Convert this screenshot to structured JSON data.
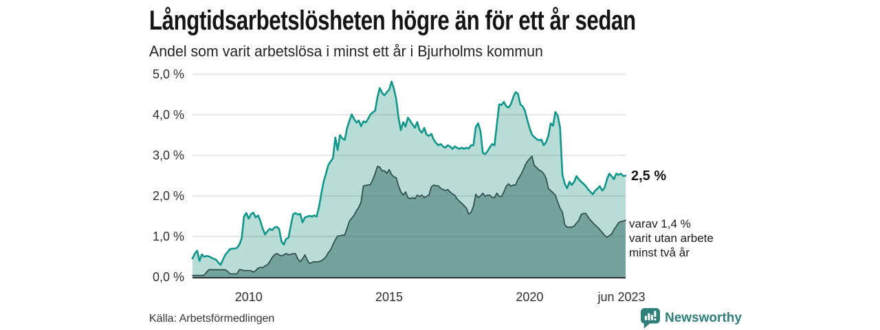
{
  "header": {
    "title": "Långtidsarbetslösheten högre än för ett år sedan",
    "subtitle": "Andel som varit arbetslösa i minst ett år i Bjurholms kommun"
  },
  "chart_data": {
    "type": "area",
    "title": "Långtidsarbetslösheten högre än för ett år sedan",
    "subtitle": "Andel som varit arbetslösa i minst ett år i Bjurholms kommun",
    "x_start": "2008-01",
    "x_end": "2023-06",
    "frequency": "monthly",
    "ylim": [
      0,
      5
    ],
    "grid": "horizontal",
    "legend": "none",
    "y_ticks": [
      {
        "v": 0,
        "label": "0,0 %"
      },
      {
        "v": 1,
        "label": "1,0 %"
      },
      {
        "v": 2,
        "label": "2,0 %"
      },
      {
        "v": 3,
        "label": "3,0 %"
      },
      {
        "v": 4,
        "label": "4,0 %"
      },
      {
        "v": 5,
        "label": "5,0 %"
      }
    ],
    "x_ticks": [
      {
        "i": 24,
        "label": "2010"
      },
      {
        "i": 84,
        "label": "2015"
      },
      {
        "i": 144,
        "label": "2020"
      },
      {
        "i": 185,
        "label": "jun 2023"
      }
    ],
    "series": [
      {
        "name": "arbetslösa minst ett år",
        "fill": "#b8dcd6",
        "line": "#0e968b",
        "line_width": 2.6,
        "end_value": "2,5 %",
        "values": [
          0.46,
          0.58,
          0.65,
          0.4,
          0.56,
          0.5,
          0.52,
          0.51,
          0.48,
          0.45,
          0.43,
          0.36,
          0.3,
          0.43,
          0.55,
          0.62,
          0.69,
          0.7,
          0.7,
          0.72,
          0.8,
          0.95,
          1.49,
          1.58,
          1.44,
          1.55,
          1.59,
          1.47,
          1.52,
          1.38,
          1.19,
          1.05,
          1.13,
          1.19,
          1.16,
          1.22,
          1.24,
          1.19,
          0.88,
          0.8,
          0.94,
          0.97,
          1.27,
          1.55,
          1.58,
          1.54,
          1.56,
          1.35,
          1.47,
          1.49,
          1.51,
          1.49,
          1.52,
          1.49,
          1.72,
          2.05,
          2.35,
          2.55,
          2.76,
          2.85,
          2.93,
          3.44,
          3.13,
          3.5,
          3.42,
          3.38,
          3.67,
          3.85,
          4.01,
          3.9,
          3.81,
          3.86,
          3.72,
          3.84,
          3.81,
          3.9,
          4.01,
          4.06,
          4.1,
          4.43,
          4.66,
          4.54,
          4.48,
          4.56,
          4.62,
          4.82,
          4.65,
          4.39,
          3.93,
          3.62,
          3.82,
          3.71,
          3.93,
          3.85,
          3.76,
          3.68,
          3.82,
          3.62,
          3.56,
          3.68,
          3.51,
          3.48,
          3.53,
          3.39,
          3.31,
          3.25,
          3.28,
          3.22,
          3.19,
          3.25,
          3.22,
          3.16,
          3.22,
          3.19,
          3.16,
          3.19,
          3.16,
          3.19,
          3.17,
          3.25,
          3.25,
          3.7,
          3.79,
          3.59,
          3.06,
          3.03,
          3.1,
          3.2,
          3.28,
          3.25,
          3.76,
          4.26,
          4.24,
          4.32,
          4.21,
          4.18,
          4.26,
          4.43,
          4.56,
          4.52,
          4.26,
          4.21,
          4.1,
          3.87,
          3.67,
          3.51,
          3.45,
          3.4,
          3.37,
          3.39,
          3.25,
          3.32,
          3.48,
          3.79,
          3.73,
          4.07,
          3.98,
          3.7,
          2.52,
          2.3,
          2.19,
          2.35,
          2.27,
          2.35,
          2.49,
          2.41,
          2.35,
          2.3,
          2.24,
          2.16,
          2.1,
          2.04,
          2.13,
          2.18,
          2.24,
          2.13,
          2.2,
          2.41,
          2.55,
          2.49,
          2.41,
          2.55,
          2.52,
          2.55,
          2.49,
          2.5
        ]
      },
      {
        "name": "varav utan arbete minst två år",
        "fill": "#73a39c",
        "line": "#2d4b47",
        "line_width": 1.7,
        "end_value": "1,4 %",
        "values": [
          0.04,
          0.04,
          0.04,
          0.04,
          0.04,
          0.05,
          0.12,
          0.18,
          0.18,
          0.18,
          0.18,
          0.18,
          0.18,
          0.18,
          0.18,
          0.14,
          0.08,
          0.08,
          0.08,
          0.08,
          0.18,
          0.18,
          0.16,
          0.16,
          0.16,
          0.16,
          0.12,
          0.16,
          0.22,
          0.24,
          0.23,
          0.28,
          0.3,
          0.38,
          0.48,
          0.55,
          0.58,
          0.55,
          0.52,
          0.55,
          0.58,
          0.55,
          0.56,
          0.58,
          0.58,
          0.45,
          0.38,
          0.45,
          0.55,
          0.42,
          0.33,
          0.36,
          0.38,
          0.37,
          0.38,
          0.4,
          0.44,
          0.5,
          0.6,
          0.67,
          0.8,
          0.92,
          1.01,
          1.02,
          1.03,
          1.04,
          1.2,
          1.38,
          1.45,
          1.52,
          1.63,
          1.72,
          1.85,
          2.25,
          2.26,
          2.27,
          2.28,
          2.4,
          2.55,
          2.73,
          2.71,
          2.62,
          2.62,
          2.56,
          2.65,
          2.53,
          2.47,
          2.45,
          2.25,
          2.1,
          2.02,
          2.1,
          1.96,
          1.93,
          1.96,
          1.93,
          2.02,
          1.99,
          2.02,
          1.96,
          1.99,
          2.02,
          2.22,
          2.27,
          2.25,
          2.25,
          2.19,
          2.16,
          2.13,
          2.16,
          2.1,
          2.05,
          2.02,
          1.93,
          1.87,
          1.82,
          1.76,
          1.7,
          1.55,
          1.6,
          1.74,
          2.04,
          1.96,
          2.0,
          2.07,
          1.99,
          2.02,
          2.02,
          1.96,
          1.96,
          2.07,
          1.99,
          1.99,
          2.1,
          2.24,
          2.3,
          2.24,
          2.27,
          2.27,
          2.41,
          2.5,
          2.61,
          2.75,
          2.85,
          2.92,
          2.98,
          2.75,
          2.7,
          2.64,
          2.61,
          2.55,
          2.44,
          2.19,
          2.13,
          2.08,
          2.02,
          1.85,
          1.7,
          1.6,
          1.29,
          1.23,
          1.23,
          1.23,
          1.26,
          1.33,
          1.4,
          1.54,
          1.57,
          1.57,
          1.48,
          1.4,
          1.34,
          1.28,
          1.23,
          1.17,
          1.1,
          1.03,
          0.98,
          1.02,
          1.06,
          1.17,
          1.25,
          1.34,
          1.37,
          1.38,
          1.4
        ]
      }
    ],
    "annotations": {
      "end_value_label": "2,5 %",
      "sub_label": "varav 1,4 %\nvarit utan arbete\nminst två år"
    },
    "colors": {
      "grid": "#e1e1e5",
      "axis": "#2e2e2e",
      "accent_teal": "#0e968b",
      "brand_teal": "#2e7e79"
    }
  },
  "footer": {
    "source": "Källa: Arbetsförmedlingen",
    "brand": "Newsworthy"
  }
}
